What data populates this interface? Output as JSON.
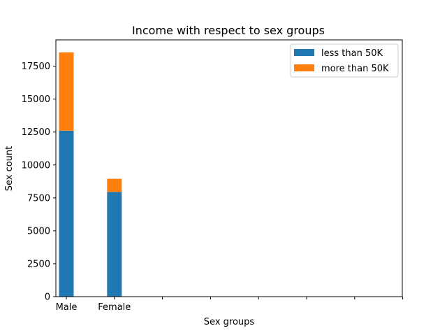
{
  "chart_data": {
    "type": "bar",
    "stacked": true,
    "title": "Income with respect to sex groups",
    "xlabel": "Sex groups",
    "ylabel": "Sex count",
    "categories": [
      "Male",
      "Female",
      "",
      "",
      "",
      "",
      "",
      ""
    ],
    "series": [
      {
        "name": "less than 50K",
        "color": "#1f77b4",
        "values": [
          12600,
          7950,
          0,
          0,
          0,
          0,
          0,
          0
        ]
      },
      {
        "name": "more than 50K",
        "color": "#ff7f0e",
        "values": [
          5950,
          1000,
          0,
          0,
          0,
          0,
          0,
          0
        ]
      }
    ],
    "ylim": [
      0,
      19500
    ],
    "yticks": [
      0,
      2500,
      5000,
      7500,
      10000,
      12500,
      15000,
      17500
    ],
    "grid": false,
    "legend_position": "top-right"
  }
}
